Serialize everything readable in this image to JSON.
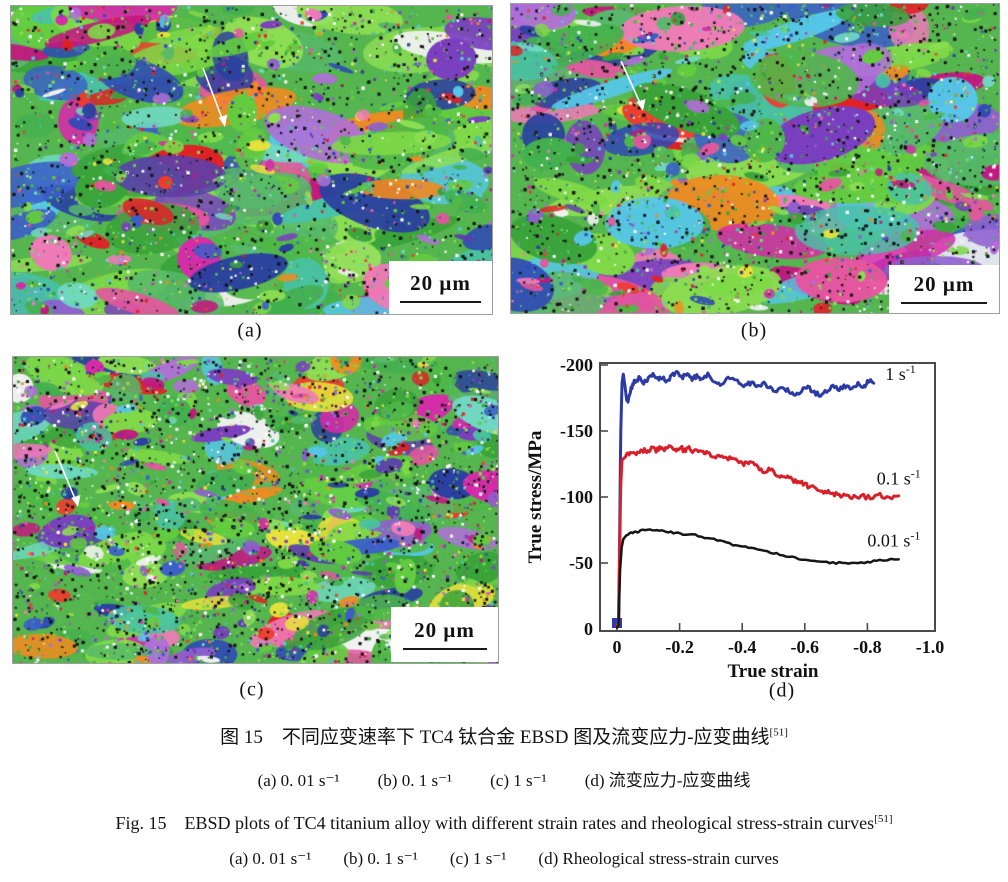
{
  "figure": {
    "panels": [
      {
        "id": "a",
        "label": "(a)",
        "scale_bar": "20 μm",
        "has_arrow": true
      },
      {
        "id": "b",
        "label": "(b)",
        "scale_bar": "20 μm",
        "has_arrow": true
      },
      {
        "id": "c",
        "label": "(c)",
        "scale_bar": "20 μm",
        "has_arrow": true
      },
      {
        "id": "d",
        "label": "(d)"
      }
    ],
    "captions": {
      "zh_main": "图 15　不同应变速率下 TC4 钛合金 EBSD 图及流变应力-应变曲线",
      "zh_main_ref": "[51]",
      "zh_sub": [
        "(a) 0. 01 s⁻¹",
        "(b) 0. 1 s⁻¹",
        "(c) 1 s⁻¹",
        "(d) 流变应力-应变曲线"
      ],
      "en_main": "Fig. 15　EBSD plots of TC4 titanium alloy with different strain rates and rheological stress-strain curves",
      "en_main_ref": "[51]",
      "en_sub": [
        "(a) 0. 01 s⁻¹",
        "(b) 0. 1 s⁻¹",
        "(c) 1 s⁻¹",
        "(d) Rheological stress-strain curves"
      ]
    },
    "ebsd_colors": {
      "greens": [
        "#3aa33a",
        "#4fb848",
        "#63cc3f",
        "#7ed947",
        "#57b96a",
        "#8ede52",
        "#43b04f"
      ],
      "others": [
        "#2f49b5",
        "#3a5fc8",
        "#2a3fa0",
        "#56c7e8",
        "#49c2a5",
        "#6fd9c2",
        "#d62ba8",
        "#e6559f",
        "#f07ab8",
        "#c2187e",
        "#e02127",
        "#ef3b2d",
        "#f28a1f",
        "#e8e23a",
        "#7a3fbf",
        "#8f5fd0",
        "#5a3fae",
        "#b06fd8",
        "#f2f2f2"
      ],
      "speckle_dark": "#141414",
      "speckle_light": "#ffffff",
      "base": "#55b54e"
    },
    "panel_render": {
      "a": {
        "seed": 11,
        "big": 150,
        "small": 130,
        "speckles": 2400,
        "rx": [
          14,
          62
        ],
        "ry": [
          7,
          26
        ],
        "green_bias": 0.46
      },
      "b": {
        "seed": 29,
        "big": 140,
        "small": 120,
        "speckles": 2900,
        "rx": [
          16,
          68
        ],
        "ry": [
          8,
          28
        ],
        "green_bias": 0.46
      },
      "c": {
        "seed": 47,
        "big": 175,
        "small": 150,
        "speckles": 3800,
        "rx": [
          10,
          44
        ],
        "ry": [
          6,
          18
        ],
        "green_bias": 0.42
      }
    }
  },
  "chart_data": {
    "type": "line",
    "title": "",
    "xlabel": "True strain",
    "ylabel": "True stress/MPa",
    "xlim": [
      0,
      -1.0
    ],
    "ylim": [
      0,
      -200
    ],
    "grid": false,
    "legend_position": "inline-right",
    "frame_color": "#4a4a4a",
    "x_ticks": {
      "values": [
        0,
        -0.2,
        -0.4,
        -0.6,
        -0.8,
        -1.0
      ],
      "labels": [
        "0",
        "-0.2",
        "-0.4",
        "-0.6",
        "-0.8",
        "-1.0"
      ]
    },
    "y_ticks": {
      "values": [
        0,
        -50,
        -100,
        -150,
        -200
      ],
      "labels": [
        "0",
        "-50",
        "-100",
        "-150",
        "-200"
      ]
    },
    "series": [
      {
        "name": "1 s⁻¹",
        "label_base": "1 s",
        "label_sup": "-1",
        "color": "#2b3aa5",
        "width": 3,
        "noise": 2.3,
        "label_pos": [
          -0.857,
          -193
        ],
        "points": [
          [
            0,
            -2
          ],
          [
            -0.005,
            -5
          ],
          [
            -0.008,
            -60
          ],
          [
            -0.012,
            -150
          ],
          [
            -0.016,
            -186
          ],
          [
            -0.02,
            -193
          ],
          [
            -0.025,
            -185
          ],
          [
            -0.03,
            -175
          ],
          [
            -0.035,
            -172
          ],
          [
            -0.045,
            -182
          ],
          [
            -0.055,
            -187
          ],
          [
            -0.07,
            -190
          ],
          [
            -0.085,
            -186
          ],
          [
            -0.1,
            -189
          ],
          [
            -0.115,
            -192
          ],
          [
            -0.13,
            -189
          ],
          [
            -0.145,
            -191
          ],
          [
            -0.16,
            -188
          ],
          [
            -0.175,
            -192
          ],
          [
            -0.19,
            -195
          ],
          [
            -0.21,
            -191
          ],
          [
            -0.225,
            -193
          ],
          [
            -0.24,
            -189
          ],
          [
            -0.255,
            -192
          ],
          [
            -0.27,
            -190
          ],
          [
            -0.29,
            -193
          ],
          [
            -0.31,
            -188
          ],
          [
            -0.33,
            -185
          ],
          [
            -0.35,
            -189
          ],
          [
            -0.37,
            -191
          ],
          [
            -0.39,
            -186
          ],
          [
            -0.41,
            -184
          ],
          [
            -0.43,
            -187
          ],
          [
            -0.45,
            -183
          ],
          [
            -0.47,
            -186
          ],
          [
            -0.49,
            -182
          ],
          [
            -0.51,
            -179
          ],
          [
            -0.53,
            -183
          ],
          [
            -0.55,
            -180
          ],
          [
            -0.57,
            -177
          ],
          [
            -0.59,
            -181
          ],
          [
            -0.61,
            -183
          ],
          [
            -0.63,
            -179
          ],
          [
            -0.65,
            -177
          ],
          [
            -0.67,
            -181
          ],
          [
            -0.69,
            -184
          ],
          [
            -0.71,
            -181
          ],
          [
            -0.73,
            -184
          ],
          [
            -0.75,
            -182
          ],
          [
            -0.77,
            -186
          ],
          [
            -0.79,
            -184
          ],
          [
            -0.8,
            -188
          ],
          [
            -0.82,
            -187
          ]
        ]
      },
      {
        "name": "0.1 s⁻¹",
        "label_base": "0.1 s",
        "label_sup": "-1",
        "color": "#d8202a",
        "width": 3,
        "noise": 2.4,
        "label_pos": [
          -0.83,
          -114
        ],
        "points": [
          [
            0,
            -2
          ],
          [
            -0.005,
            -5
          ],
          [
            -0.008,
            -50
          ],
          [
            -0.012,
            -110
          ],
          [
            -0.016,
            -128
          ],
          [
            -0.025,
            -130
          ],
          [
            -0.035,
            -133
          ],
          [
            -0.05,
            -135
          ],
          [
            -0.065,
            -133
          ],
          [
            -0.08,
            -136
          ],
          [
            -0.095,
            -134
          ],
          [
            -0.11,
            -137
          ],
          [
            -0.125,
            -135
          ],
          [
            -0.14,
            -138
          ],
          [
            -0.155,
            -136
          ],
          [
            -0.17,
            -139
          ],
          [
            -0.185,
            -136
          ],
          [
            -0.2,
            -138
          ],
          [
            -0.215,
            -135
          ],
          [
            -0.23,
            -138
          ],
          [
            -0.245,
            -134
          ],
          [
            -0.26,
            -136
          ],
          [
            -0.275,
            -133
          ],
          [
            -0.29,
            -134
          ],
          [
            -0.31,
            -131
          ],
          [
            -0.33,
            -132
          ],
          [
            -0.35,
            -129
          ],
          [
            -0.37,
            -130
          ],
          [
            -0.39,
            -127
          ],
          [
            -0.41,
            -125
          ],
          [
            -0.43,
            -126
          ],
          [
            -0.45,
            -122
          ],
          [
            -0.47,
            -120
          ],
          [
            -0.49,
            -121
          ],
          [
            -0.51,
            -117
          ],
          [
            -0.53,
            -116
          ],
          [
            -0.55,
            -114
          ],
          [
            -0.57,
            -112
          ],
          [
            -0.59,
            -111
          ],
          [
            -0.61,
            -108
          ],
          [
            -0.63,
            -107
          ],
          [
            -0.65,
            -105
          ],
          [
            -0.67,
            -104
          ],
          [
            -0.69,
            -103
          ],
          [
            -0.71,
            -101
          ],
          [
            -0.73,
            -102
          ],
          [
            -0.75,
            -100
          ],
          [
            -0.78,
            -101
          ],
          [
            -0.81,
            -99
          ],
          [
            -0.84,
            -101
          ],
          [
            -0.87,
            -100
          ],
          [
            -0.9,
            -101
          ]
        ]
      },
      {
        "name": "0.01 s⁻¹",
        "label_base": "0.01 s",
        "label_sup": "-1",
        "color": "#161616",
        "width": 2.5,
        "noise": 0.9,
        "label_pos": [
          -0.8,
          -67
        ],
        "points": [
          [
            0,
            -1
          ],
          [
            -0.005,
            -3
          ],
          [
            -0.01,
            -45
          ],
          [
            -0.015,
            -62
          ],
          [
            -0.02,
            -68
          ],
          [
            -0.03,
            -71
          ],
          [
            -0.05,
            -73
          ],
          [
            -0.07,
            -74
          ],
          [
            -0.09,
            -75
          ],
          [
            -0.12,
            -75
          ],
          [
            -0.15,
            -74
          ],
          [
            -0.18,
            -73
          ],
          [
            -0.21,
            -72
          ],
          [
            -0.25,
            -71
          ],
          [
            -0.29,
            -69
          ],
          [
            -0.33,
            -67
          ],
          [
            -0.37,
            -64
          ],
          [
            -0.41,
            -62
          ],
          [
            -0.45,
            -60
          ],
          [
            -0.49,
            -58
          ],
          [
            -0.53,
            -56
          ],
          [
            -0.57,
            -54
          ],
          [
            -0.61,
            -52
          ],
          [
            -0.65,
            -51
          ],
          [
            -0.69,
            -50
          ],
          [
            -0.73,
            -50
          ],
          [
            -0.77,
            -50
          ],
          [
            -0.81,
            -51
          ],
          [
            -0.85,
            -52
          ],
          [
            -0.9,
            -53
          ]
        ]
      }
    ]
  }
}
